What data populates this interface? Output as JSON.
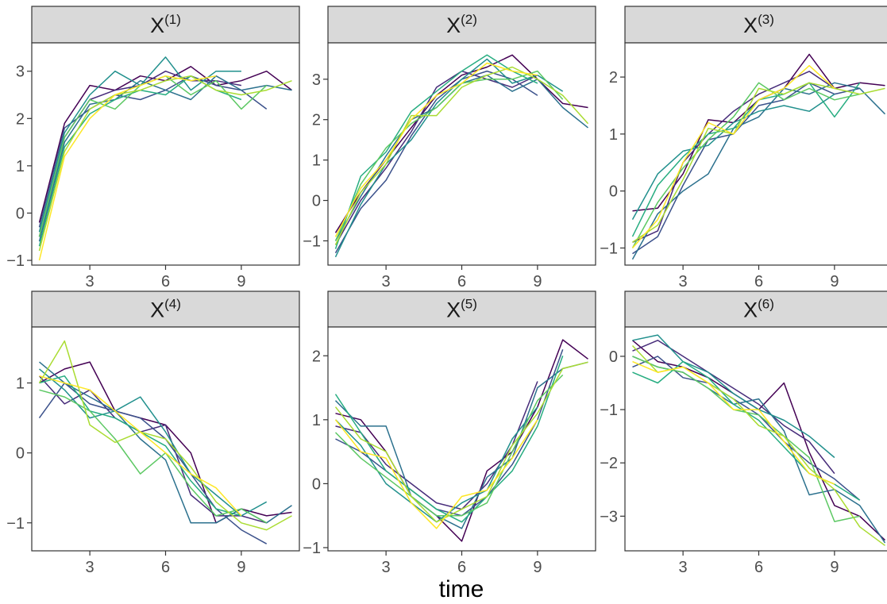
{
  "chart_data": {
    "type": "line",
    "layout": "facet-grid",
    "xlabel": "time",
    "x": [
      1,
      2,
      3,
      4,
      5,
      6,
      7,
      8,
      9,
      10,
      11
    ],
    "panels": [
      {
        "label": "X",
        "superscript": "(1)",
        "xlim": [
          0.7,
          11.3
        ],
        "ylim": [
          -1.1,
          3.6
        ],
        "xticks": [
          3,
          6,
          9
        ],
        "yticks": [
          -1,
          0,
          1,
          2,
          3
        ],
        "series": [
          {
            "color": "#440154",
            "values": [
              -0.2,
              1.9,
              2.7,
              2.6,
              2.9,
              2.8,
              3.1,
              2.7,
              2.8,
              3.0,
              2.6
            ]
          },
          {
            "color": "#472c7a",
            "values": [
              -0.5,
              1.6,
              2.4,
              2.6,
              2.7,
              3.0,
              2.8,
              2.8,
              2.7
            ]
          },
          {
            "color": "#3b518b",
            "values": [
              -0.3,
              1.8,
              2.2,
              2.5,
              2.4,
              2.6,
              2.9,
              2.7,
              2.6,
              2.2
            ]
          },
          {
            "color": "#2c718e",
            "values": [
              -0.6,
              1.5,
              2.3,
              2.4,
              2.8,
              2.6,
              2.4,
              2.9,
              2.6,
              2.7,
              2.6
            ]
          },
          {
            "color": "#21908d",
            "values": [
              -0.4,
              1.7,
              2.5,
              3.0,
              2.7,
              3.3,
              2.6,
              3.0,
              3.0
            ]
          },
          {
            "color": "#27ad81",
            "values": [
              -0.7,
              1.4,
              2.1,
              2.4,
              2.6,
              2.5,
              2.9,
              2.6,
              2.4
            ]
          },
          {
            "color": "#5cc863",
            "values": [
              -0.5,
              1.6,
              2.4,
              2.2,
              2.7,
              2.9,
              2.5,
              2.8,
              2.2,
              2.7
            ]
          },
          {
            "color": "#aadc32",
            "values": [
              -0.8,
              1.3,
              2.2,
              2.5,
              2.6,
              2.8,
              2.9,
              2.6,
              2.5,
              2.6,
              2.8
            ]
          },
          {
            "color": "#fde725",
            "values": [
              -1.0,
              1.2,
              2.0,
              2.5,
              2.7,
              2.9,
              2.8,
              2.9
            ]
          }
        ]
      },
      {
        "label": "X",
        "superscript": "(2)",
        "xlim": [
          0.7,
          11.3
        ],
        "ylim": [
          -1.6,
          3.9
        ],
        "xticks": [
          3,
          6,
          9
        ],
        "yticks": [
          -1,
          0,
          1,
          2,
          3
        ],
        "series": [
          {
            "color": "#440154",
            "values": [
              -0.8,
              0.2,
              1.0,
              1.8,
              2.6,
              3.1,
              3.3,
              3.6,
              3.0,
              2.4,
              2.3
            ]
          },
          {
            "color": "#472c7a",
            "values": [
              -1.1,
              0.0,
              0.8,
              1.7,
              2.8,
              3.2,
              3.0,
              2.8,
              3.1
            ]
          },
          {
            "color": "#3b518b",
            "values": [
              -1.3,
              -0.2,
              0.5,
              1.6,
              2.5,
              3.0,
              3.2,
              3.0,
              2.6
            ]
          },
          {
            "color": "#2c718e",
            "values": [
              -1.0,
              0.1,
              1.1,
              2.0,
              2.3,
              2.9,
              3.1,
              2.7,
              3.0,
              2.3,
              1.8
            ]
          },
          {
            "color": "#21908d",
            "values": [
              -1.4,
              -0.1,
              0.9,
              1.5,
              2.4,
              3.0,
              3.5,
              2.9,
              3.1,
              2.7
            ]
          },
          {
            "color": "#27ad81",
            "values": [
              -1.2,
              0.6,
              1.2,
              2.2,
              2.7,
              3.2,
              3.6,
              3.2,
              2.9
            ]
          },
          {
            "color": "#5cc863",
            "values": [
              -1.0,
              0.4,
              1.3,
              1.9,
              2.3,
              2.9,
              3.0,
              3.0,
              3.2,
              2.5
            ]
          },
          {
            "color": "#aadc32",
            "values": [
              -1.1,
              0.2,
              0.9,
              2.1,
              2.1,
              2.8,
              3.1,
              3.3,
              3.0,
              2.6,
              1.9
            ]
          },
          {
            "color": "#fde725",
            "values": [
              -0.9,
              0.3,
              1.0,
              2.0,
              2.6,
              2.9,
              3.4,
              3.2,
              3.1
            ]
          }
        ]
      },
      {
        "label": "X",
        "superscript": "(3)",
        "xlim": [
          0.7,
          11.3
        ],
        "ylim": [
          -1.3,
          2.6
        ],
        "xticks": [
          3,
          6,
          9
        ],
        "yticks": [
          -1,
          0,
          1,
          2
        ],
        "series": [
          {
            "color": "#440154",
            "values": [
              -0.35,
              -0.3,
              0.3,
              1.25,
              1.2,
              1.6,
              1.8,
              2.4,
              1.8,
              1.9,
              1.85
            ]
          },
          {
            "color": "#472c7a",
            "values": [
              -0.9,
              -0.7,
              0.5,
              1.0,
              1.4,
              1.7,
              1.9,
              2.1,
              1.8
            ]
          },
          {
            "color": "#3b518b",
            "values": [
              -1.1,
              -0.8,
              0.1,
              0.9,
              1.0,
              1.5,
              1.6,
              1.9,
              1.7,
              1.8
            ]
          },
          {
            "color": "#2c718e",
            "values": [
              -1.2,
              -0.4,
              0.0,
              0.3,
              1.1,
              1.3,
              1.8,
              1.7,
              1.9,
              1.8,
              1.35
            ]
          },
          {
            "color": "#21908d",
            "values": [
              -0.5,
              0.3,
              0.7,
              0.8,
              1.2,
              1.4,
              1.5,
              1.4,
              1.7
            ]
          },
          {
            "color": "#27ad81",
            "values": [
              -0.8,
              0.1,
              0.6,
              1.0,
              1.1,
              1.6,
              1.7,
              1.9,
              1.3,
              1.9
            ]
          },
          {
            "color": "#5cc863",
            "values": [
              -1.0,
              -0.2,
              0.4,
              0.9,
              1.3,
              1.9,
              1.6,
              1.8,
              1.6,
              1.7
            ]
          },
          {
            "color": "#aadc32",
            "values": [
              -0.9,
              -0.6,
              0.2,
              1.1,
              1.0,
              1.8,
              1.7,
              1.9,
              1.8,
              1.7,
              1.8
            ]
          },
          {
            "color": "#fde725",
            "values": [
              -1.0,
              -0.5,
              0.5,
              1.2,
              1.0,
              1.6,
              1.8,
              2.2,
              1.8
            ]
          }
        ]
      },
      {
        "label": "X",
        "superscript": "(4)",
        "xlim": [
          0.7,
          11.3
        ],
        "ylim": [
          -1.4,
          1.8
        ],
        "xticks": [
          3,
          6,
          9
        ],
        "yticks": [
          -1,
          0,
          1
        ],
        "series": [
          {
            "color": "#440154",
            "values": [
              1.0,
              1.2,
              1.3,
              0.6,
              0.5,
              0.4,
              0.0,
              -1.0,
              -0.8,
              -0.9,
              -0.85
            ]
          },
          {
            "color": "#472c7a",
            "values": [
              1.1,
              0.7,
              0.9,
              0.5,
              0.3,
              0.4,
              -0.6,
              -0.9,
              -0.9,
              -1.0
            ]
          },
          {
            "color": "#3b518b",
            "values": [
              0.5,
              1.0,
              0.7,
              0.6,
              0.5,
              0.2,
              -0.3,
              -0.8,
              -1.1,
              -1.3
            ]
          },
          {
            "color": "#2c718e",
            "values": [
              1.3,
              1.0,
              0.8,
              0.6,
              0.2,
              -0.1,
              -1.0,
              -1.0,
              -0.8,
              -1.0,
              -0.75
            ]
          },
          {
            "color": "#21908d",
            "values": [
              1.2,
              0.9,
              0.5,
              0.6,
              0.8,
              0.3,
              -0.3,
              -0.6,
              -0.9,
              -0.7
            ]
          },
          {
            "color": "#27ad81",
            "values": [
              1.0,
              1.1,
              0.6,
              0.5,
              0.3,
              0.1,
              -0.4,
              -0.8,
              -0.9
            ]
          },
          {
            "color": "#5cc863",
            "values": [
              0.9,
              0.8,
              0.6,
              0.2,
              -0.3,
              0.0,
              -0.5,
              -0.9,
              -0.8,
              -1.0
            ]
          },
          {
            "color": "#aadc32",
            "values": [
              1.0,
              1.6,
              0.4,
              0.15,
              0.3,
              0.2,
              -0.2,
              -0.7,
              -1.0,
              -1.1,
              -0.9
            ]
          },
          {
            "color": "#fde725",
            "values": [
              1.1,
              1.0,
              0.9,
              0.6,
              0.3,
              0.0,
              -0.3,
              -0.5,
              -0.9
            ]
          }
        ]
      },
      {
        "label": "X",
        "superscript": "(5)",
        "xlim": [
          0.7,
          11.3
        ],
        "ylim": [
          -1.05,
          2.45
        ],
        "xticks": [
          3,
          6,
          9
        ],
        "yticks": [
          -1,
          0,
          1,
          2
        ],
        "series": [
          {
            "color": "#440154",
            "values": [
              1.1,
              1.0,
              0.5,
              -0.2,
              -0.5,
              -0.9,
              0.2,
              0.5,
              1.2,
              2.25,
              1.95
            ]
          },
          {
            "color": "#472c7a",
            "values": [
              0.9,
              0.8,
              0.3,
              0.0,
              -0.3,
              -0.4,
              0.0,
              0.6,
              1.6
            ]
          },
          {
            "color": "#3b518b",
            "values": [
              0.7,
              0.5,
              0.2,
              -0.1,
              -0.4,
              -0.5,
              -0.2,
              0.3,
              1.0,
              2.1
            ]
          },
          {
            "color": "#2c718e",
            "values": [
              1.3,
              0.9,
              0.9,
              -0.2,
              -0.5,
              -0.7,
              0.1,
              0.4,
              1.5,
              1.8,
              1.9
            ]
          },
          {
            "color": "#21908d",
            "values": [
              1.0,
              0.6,
              0.0,
              -0.3,
              -0.6,
              -0.3,
              -0.1,
              0.7,
              1.2
            ]
          },
          {
            "color": "#27ad81",
            "values": [
              1.4,
              0.8,
              0.2,
              -0.1,
              -0.4,
              -0.6,
              -0.2,
              0.2,
              0.9,
              2.0
            ]
          },
          {
            "color": "#5cc863",
            "values": [
              0.8,
              0.4,
              0.1,
              -0.2,
              -0.5,
              -0.5,
              -0.3,
              0.5,
              1.3,
              1.7
            ]
          },
          {
            "color": "#aadc32",
            "values": [
              1.2,
              0.7,
              0.5,
              -0.2,
              -0.6,
              -0.4,
              -0.2,
              0.6,
              1.1,
              1.8,
              1.9
            ]
          },
          {
            "color": "#fde725",
            "values": [
              1.0,
              0.5,
              0.4,
              -0.3,
              -0.7,
              -0.2,
              -0.1,
              0.4,
              1.0
            ]
          }
        ]
      },
      {
        "label": "X",
        "superscript": "(6)",
        "xlim": [
          0.7,
          11.3
        ],
        "ylim": [
          -3.65,
          0.55
        ],
        "xticks": [
          3,
          6,
          9
        ],
        "yticks": [
          -3,
          -2,
          -1,
          0
        ],
        "series": [
          {
            "color": "#440154",
            "values": [
              0.3,
              -0.1,
              -0.2,
              -0.4,
              -0.7,
              -1.0,
              -0.5,
              -1.8,
              -2.8,
              -3.0,
              -3.45
            ]
          },
          {
            "color": "#472c7a",
            "values": [
              0.1,
              0.3,
              0.0,
              -0.3,
              -0.6,
              -0.9,
              -1.3,
              -1.6,
              -2.2
            ]
          },
          {
            "color": "#3b518b",
            "values": [
              -0.2,
              0.0,
              -0.4,
              -0.5,
              -0.8,
              -1.1,
              -1.6,
              -2.0,
              -2.3,
              -2.7
            ]
          },
          {
            "color": "#2c718e",
            "values": [
              0.0,
              -0.2,
              -0.3,
              -0.6,
              -0.9,
              -0.8,
              -1.4,
              -2.6,
              -2.5,
              -2.8,
              -3.5
            ]
          },
          {
            "color": "#21908d",
            "values": [
              0.3,
              0.4,
              -0.1,
              -0.3,
              -0.7,
              -1.0,
              -1.2,
              -1.5,
              -1.9
            ]
          },
          {
            "color": "#27ad81",
            "values": [
              -0.3,
              -0.5,
              -0.1,
              -0.4,
              -0.9,
              -1.2,
              -1.7,
              -2.2,
              -2.4,
              -2.7
            ]
          },
          {
            "color": "#5cc863",
            "values": [
              0.0,
              -0.2,
              -0.3,
              -0.6,
              -1.0,
              -1.1,
              -1.5,
              -1.9,
              -3.1,
              -3.0
            ]
          },
          {
            "color": "#aadc32",
            "values": [
              0.2,
              -0.3,
              -0.2,
              -0.5,
              -0.8,
              -1.3,
              -1.5,
              -2.1,
              -2.5,
              -3.2,
              -3.55
            ]
          },
          {
            "color": "#fde725",
            "values": [
              -0.1,
              -0.3,
              -0.2,
              -0.5,
              -1.0,
              -1.0,
              -1.6,
              -2.2,
              -2.4
            ]
          }
        ]
      }
    ]
  }
}
